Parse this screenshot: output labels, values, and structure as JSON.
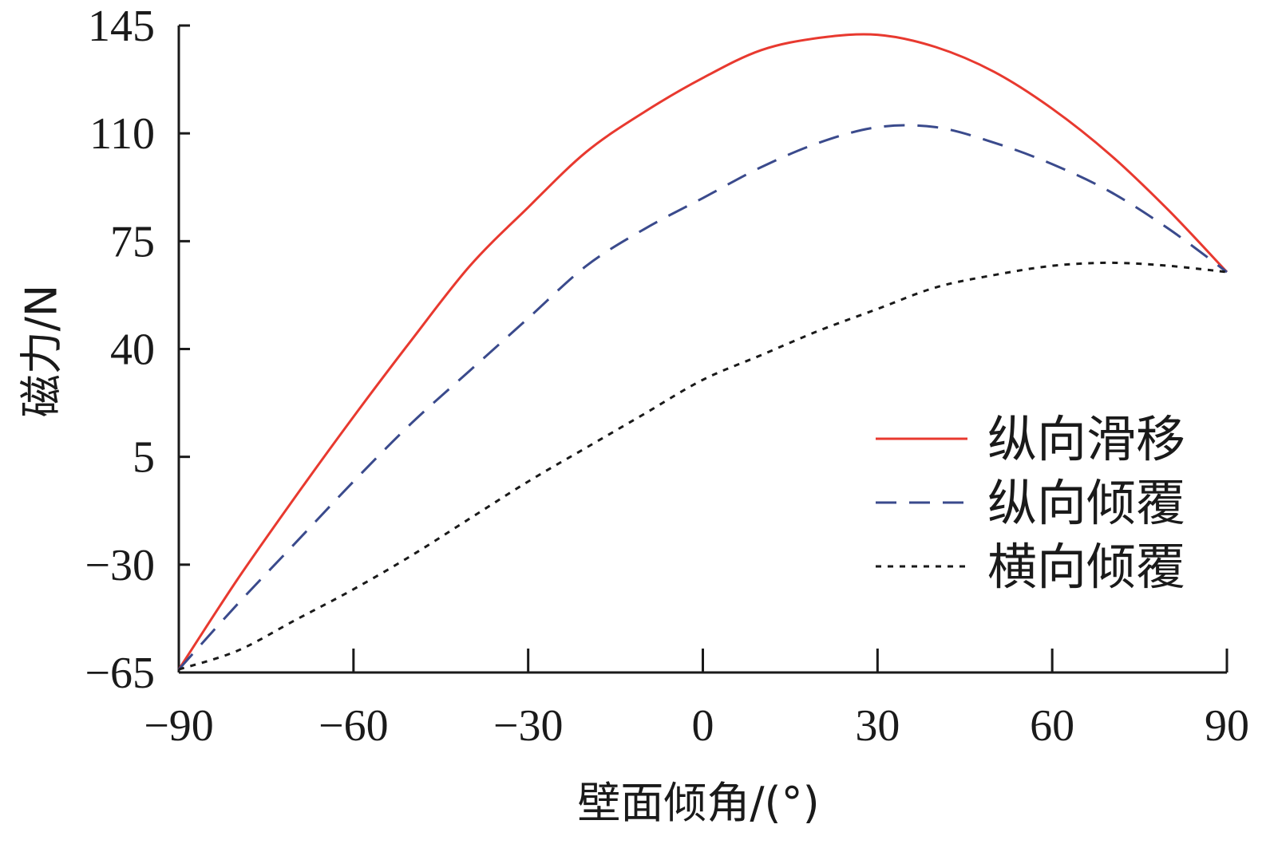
{
  "chart_data": {
    "type": "line",
    "title": "",
    "xlabel": "壁面倾角/(°)",
    "ylabel": "磁力/N",
    "xlim": [
      -90,
      90
    ],
    "ylim": [
      -65,
      145
    ],
    "x_ticks": [
      -90,
      -60,
      -30,
      0,
      30,
      60,
      90
    ],
    "y_ticks": [
      -65,
      -30,
      5,
      40,
      75,
      110,
      145
    ],
    "x_tick_labels": [
      "−90",
      "−60",
      "−30",
      "0",
      "30",
      "60",
      "90"
    ],
    "y_tick_labels": [
      "−65",
      "−30",
      "5",
      "40",
      "75",
      "110",
      "145"
    ],
    "grid": false,
    "legend_position": "right",
    "x": [
      -90,
      -80,
      -70,
      -60,
      -50,
      -40,
      -30,
      -20,
      -10,
      0,
      10,
      20,
      30,
      40,
      50,
      60,
      70,
      80,
      90
    ],
    "series": [
      {
        "name": "纵向滑移",
        "color": "#e8392f",
        "dash": "solid",
        "values": [
          -64,
          -35,
          -8,
          18,
          43,
          67,
          86,
          104,
          117,
          128,
          137,
          141,
          142,
          138,
          130,
          118,
          103,
          85,
          65
        ]
      },
      {
        "name": "纵向倾覆",
        "color": "#3a4a8c",
        "dash": "dashed",
        "values": [
          -64,
          -43,
          -23,
          -3,
          16,
          33,
          50,
          67,
          79,
          89,
          99,
          107,
          112,
          112,
          107,
          100,
          91,
          79,
          65
        ]
      },
      {
        "name": "横向倾覆",
        "color": "#1a1a1a",
        "dash": "dotted",
        "values": [
          -64,
          -58,
          -48,
          -38,
          -27,
          -15,
          -3,
          8,
          19,
          30,
          38,
          46,
          53,
          60,
          64,
          67,
          68,
          67,
          65
        ]
      }
    ]
  }
}
